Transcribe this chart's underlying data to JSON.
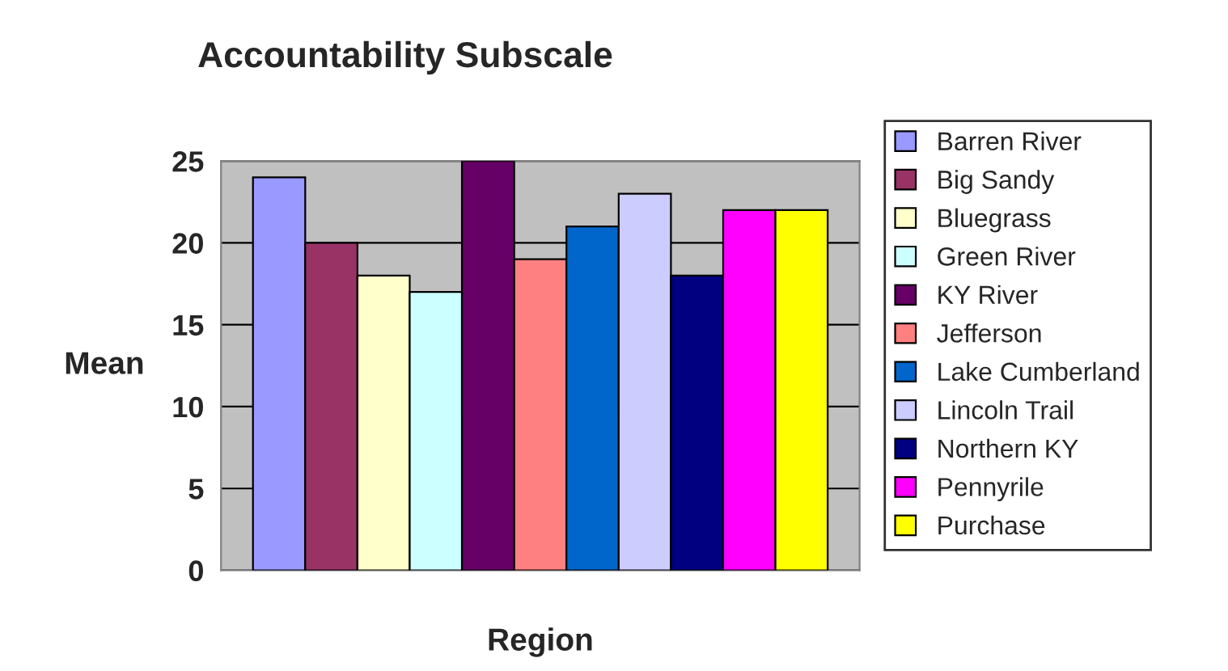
{
  "chart_data": {
    "type": "bar",
    "title": "Accountability Subscale",
    "xlabel": "Region",
    "ylabel": "Mean",
    "categories": [
      null
    ],
    "series": [
      {
        "name": "Barren River",
        "color": "#9999ff",
        "values": [
          24
        ]
      },
      {
        "name": "Big Sandy",
        "color": "#993366",
        "values": [
          20
        ]
      },
      {
        "name": "Bluegrass",
        "color": "#ffffcc",
        "values": [
          18
        ]
      },
      {
        "name": "Green River",
        "color": "#ccffff",
        "values": [
          17
        ]
      },
      {
        "name": "KY River",
        "color": "#660066",
        "values": [
          25
        ]
      },
      {
        "name": "Jefferson",
        "color": "#ff8080",
        "values": [
          19
        ]
      },
      {
        "name": "Lake Cumberland",
        "color": "#0066cc",
        "values": [
          21
        ]
      },
      {
        "name": "Lincoln Trail",
        "color": "#ccccff",
        "values": [
          23
        ]
      },
      {
        "name": "Northern KY",
        "color": "#000080",
        "values": [
          18
        ]
      },
      {
        "name": "Pennyrile",
        "color": "#ff00ff",
        "values": [
          22
        ]
      },
      {
        "name": "Purchase",
        "color": "#ffff00",
        "values": [
          22
        ]
      }
    ],
    "ylim": [
      0,
      25
    ],
    "yticks": [
      0,
      5,
      10,
      15,
      20,
      25
    ],
    "grid": "y",
    "legend": "right"
  }
}
